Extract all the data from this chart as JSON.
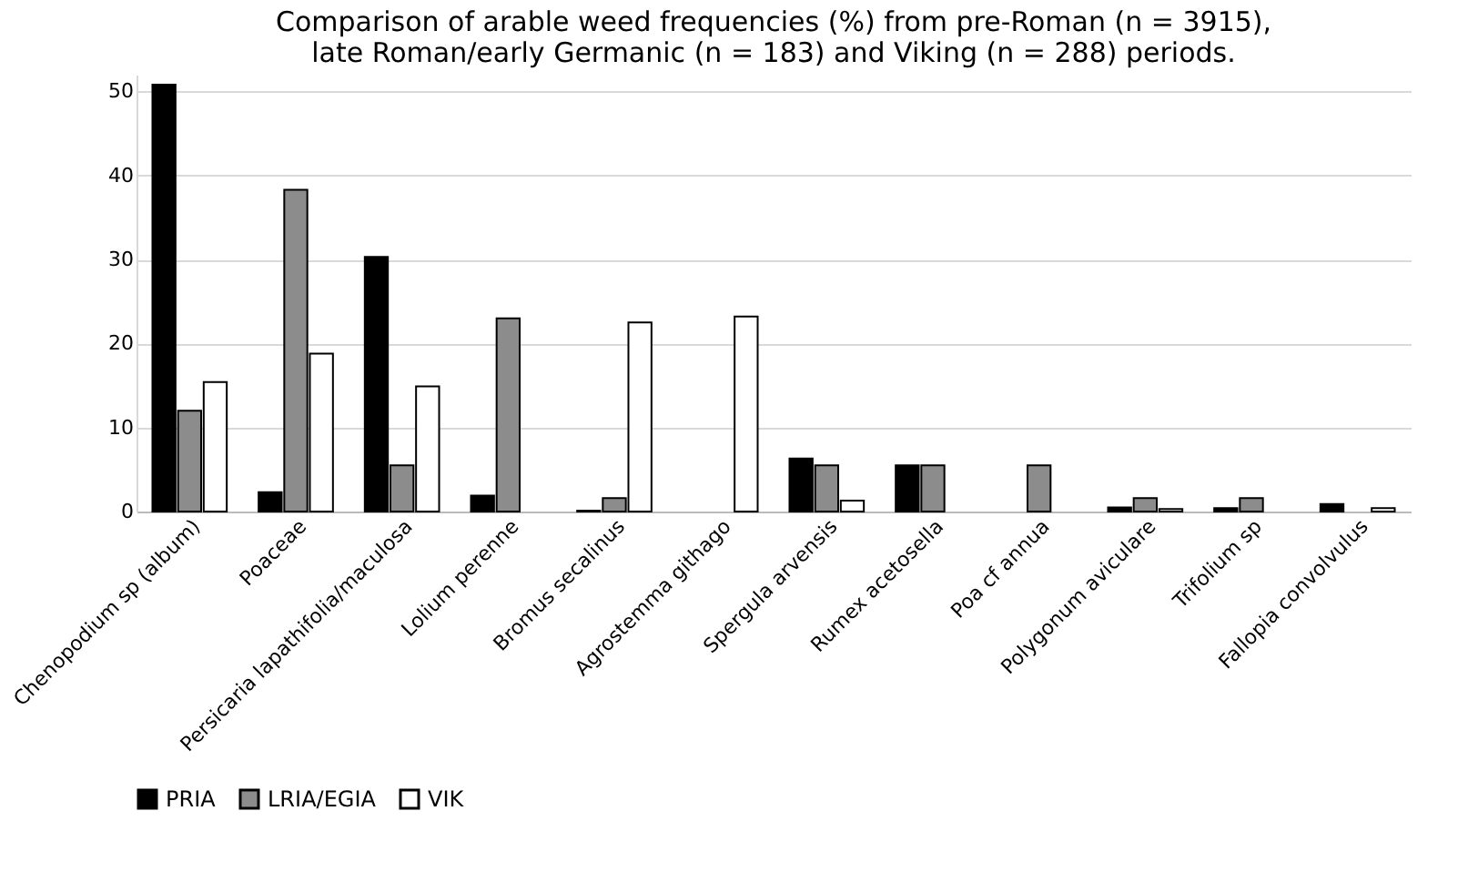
{
  "chart_data": {
    "type": "bar",
    "title": [
      "Comparison of arable weed frequencies (%) from pre-Roman (n = 3915),",
      "late Roman/early Germanic (n = 183) and Viking (n = 288) periods."
    ],
    "categories": [
      "Chenopodium sp (album)",
      "Poaceae",
      "Persicaria lapathifolia/maculosa",
      "Lolium perenne",
      "Bromus secalinus",
      "Agrostemma githago",
      "Spergula arvensis",
      "Rumex acetosella",
      "Poa cf annua",
      "Polygonum aviculare",
      "Trifolium sp",
      "Fallopia convolvulus"
    ],
    "series": [
      {
        "name": "PRIA",
        "color": "#000000",
        "values": [
          50.8,
          2.3,
          30.3,
          1.9,
          0.1,
          null,
          6.3,
          5.5,
          null,
          0.5,
          0.4,
          0.9
        ]
      },
      {
        "name": "LRIA/EGIA",
        "color": "#8c8c8c",
        "values": [
          12.0,
          38.3,
          5.5,
          23.0,
          1.6,
          null,
          5.5,
          5.5,
          5.5,
          1.6,
          1.6,
          null
        ]
      },
      {
        "name": "VIK",
        "color": "#ffffff",
        "values": [
          15.4,
          18.8,
          14.9,
          null,
          22.5,
          23.2,
          1.3,
          null,
          null,
          0.3,
          null,
          0.4
        ]
      }
    ],
    "ylim": [
      0,
      52
    ],
    "yticks": [
      0,
      10,
      20,
      30,
      40,
      50
    ],
    "grid": "y",
    "legend": "bottom"
  }
}
